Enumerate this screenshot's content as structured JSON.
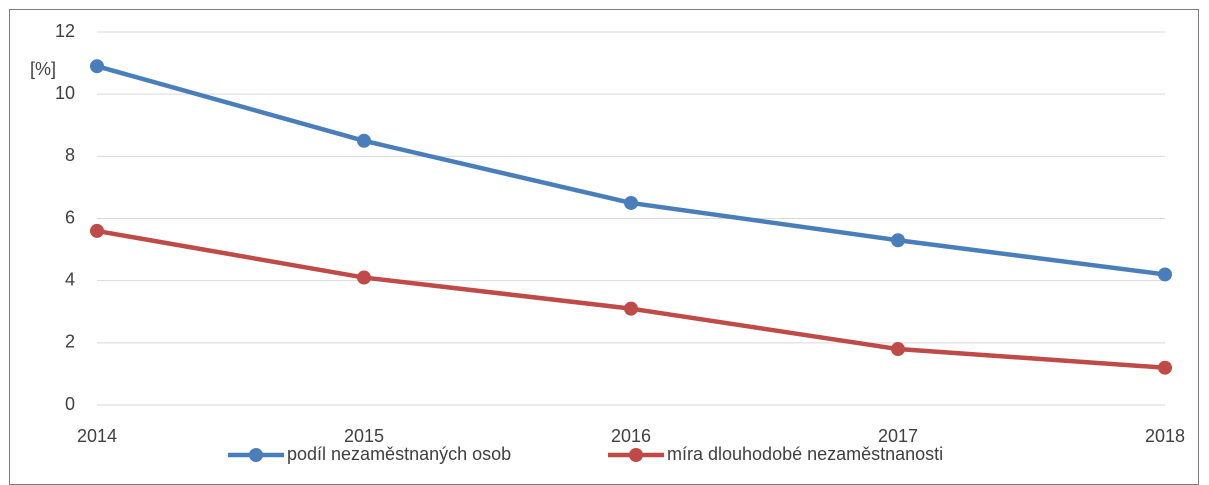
{
  "chart_data": {
    "type": "line",
    "y_label": "[%]",
    "x": [
      2014,
      2015,
      2016,
      2017,
      2018
    ],
    "xlim": [
      2014,
      2018
    ],
    "xticks": [
      2014,
      2015,
      2016,
      2017,
      2018
    ],
    "ylim": [
      0,
      12
    ],
    "yticks": [
      0,
      2,
      4,
      6,
      8,
      10,
      12
    ],
    "grid": true,
    "legend": "bottom",
    "series": [
      {
        "name": "podíl nezaměstnaných osob",
        "color": "#4a7ebb",
        "values": [
          10.9,
          8.5,
          6.5,
          5.3,
          4.2
        ]
      },
      {
        "name": "míra dlouhodobé nezaměstnanosti",
        "color": "#be4b48",
        "values": [
          5.6,
          4.1,
          3.1,
          1.8,
          1.2
        ]
      }
    ]
  }
}
